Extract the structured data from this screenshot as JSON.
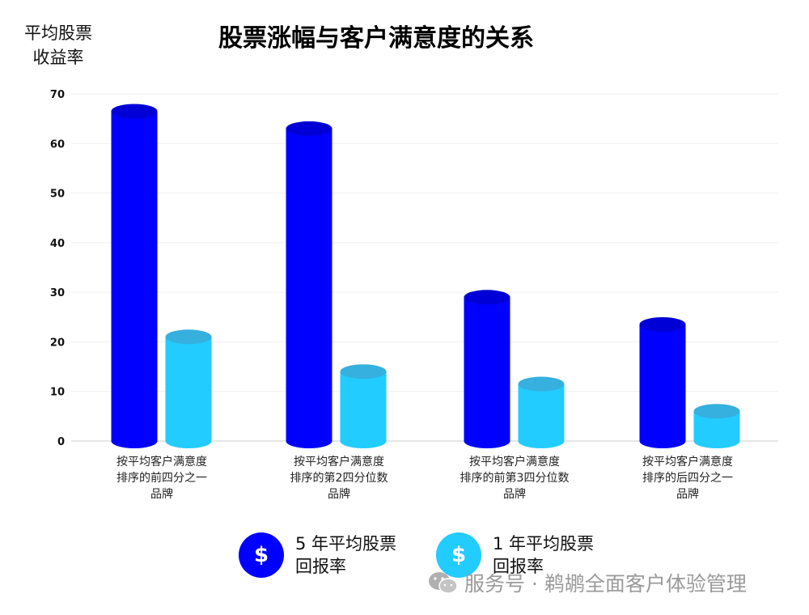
{
  "chart_data": {
    "type": "bar",
    "title": "股票涨幅与客户满意度的关系",
    "ylabel": "平均股票收益率",
    "ylabel_lines": [
      "平均股票",
      "收益率"
    ],
    "xlabel": "",
    "ylim": [
      0,
      70
    ],
    "yticks": [
      0,
      10,
      20,
      30,
      40,
      50,
      60,
      70
    ],
    "grid": true,
    "categories": [
      [
        "按平均客户满意度",
        "排序的前四分之一",
        "品牌"
      ],
      [
        "按平均客户满意度",
        "排序的第2四分位数",
        "品牌"
      ],
      [
        "按平均客户满意度",
        "排序的前第3四分位数",
        "品牌"
      ],
      [
        "按平均客户满意度",
        "排序的后四分之一",
        "品牌"
      ]
    ],
    "series": [
      {
        "name": "5 年平均股票回报率",
        "name_lines": [
          "5 年平均股票",
          "回报率"
        ],
        "color": "#0000ff",
        "top_color": "#0000d6",
        "values": [
          66.5,
          63,
          29,
          23.5
        ]
      },
      {
        "name": "1 年平均股票回报率",
        "name_lines": [
          "1 年平均股票",
          "回报率"
        ],
        "color": "#22ccff",
        "top_color": "#35b0df",
        "values": [
          21,
          14,
          11.5,
          6
        ]
      }
    ],
    "legend_position": "bottom"
  },
  "legend_icon": "dollar-icon",
  "legend_symbol": "$",
  "watermark": {
    "icon": "wechat-icon",
    "text": "服务号 · 鹈鹕全面客户体验管理"
  }
}
